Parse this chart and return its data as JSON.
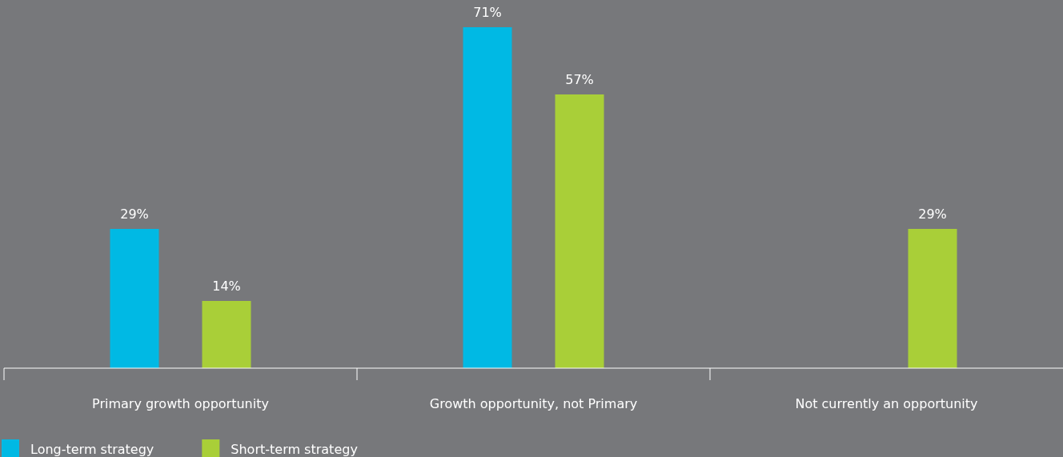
{
  "chart_data": {
    "type": "bar",
    "categories": [
      "Primary growth opportunity",
      "Growth opportunity, not Primary",
      "Not currently an opportunity"
    ],
    "series": [
      {
        "name": "Long-term strategy",
        "color": "#00b9e4",
        "values": [
          29,
          71,
          null
        ],
        "value_labels": [
          "29%",
          "71%",
          null
        ]
      },
      {
        "name": "Short-term strategy",
        "color": "#a9cf38",
        "values": [
          14,
          57,
          29
        ],
        "value_labels": [
          "14%",
          "57%",
          "29%"
        ]
      }
    ],
    "legend": "bottom left",
    "grid": false
  }
}
